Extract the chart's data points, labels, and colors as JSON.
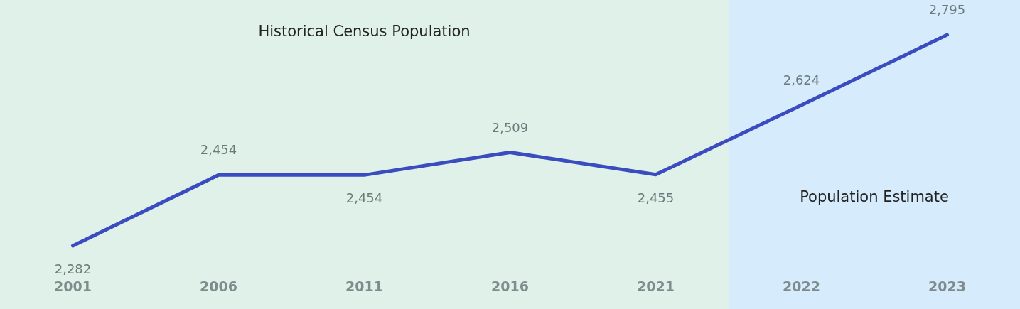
{
  "chart_data": {
    "type": "line",
    "categories": [
      "2001",
      "2006",
      "2011",
      "2016",
      "2021",
      "2022",
      "2023"
    ],
    "series": [
      {
        "color": "#3b4cc0",
        "values": [
          2282,
          2454,
          2454,
          2509,
          2455,
          2624,
          2795
        ],
        "value_labels": [
          "2,282",
          "2,454",
          "2,454",
          "2,509",
          "2,455",
          "2,624",
          "2,795"
        ]
      }
    ],
    "marker": "none",
    "line_style": "solid",
    "bands": [
      {
        "axis": "x",
        "from": "2001",
        "to": "2021",
        "label": "Historical Census Population",
        "color": "#dff1e8"
      },
      {
        "axis": "x",
        "from": "2022",
        "to": "2023",
        "label": "Population Estimate",
        "color": "#d6ebfb"
      }
    ]
  }
}
